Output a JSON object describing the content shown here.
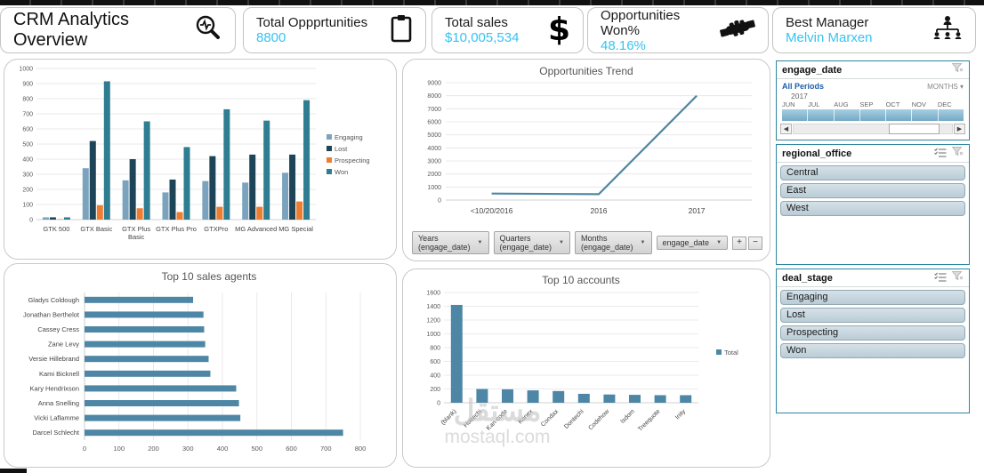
{
  "header": {
    "title": "CRM Analytics Overview",
    "title_icon": "search-analytics-icon",
    "accent_color": "#36c3f1",
    "kpis": [
      {
        "label": "Total Oppprtunities",
        "value": "8800",
        "icon": "clipboard-icon"
      },
      {
        "label": "Total sales",
        "value": "$10,005,534",
        "icon": "dollar-icon"
      },
      {
        "label": "Opportunities Won%",
        "value": "48.16%",
        "icon": "handshake-icon"
      },
      {
        "label": "Best Manager",
        "value": "Melvin Marxen",
        "icon": "org-chart-icon"
      }
    ]
  },
  "chart_data": [
    {
      "type": "bar",
      "name": "opportunities-by-product",
      "title": "",
      "categories": [
        "GTK 500",
        "GTX Basic",
        "GTX Plus Basic",
        "GTX Plus Pro",
        "GTXPro",
        "MG Advanced",
        "MG Special"
      ],
      "series": [
        {
          "name": "Engaging",
          "color": "#7ba3bd",
          "values": [
            15,
            340,
            260,
            180,
            255,
            245,
            310
          ]
        },
        {
          "name": "Lost",
          "color": "#1d4557",
          "values": [
            15,
            520,
            400,
            265,
            420,
            430,
            430
          ]
        },
        {
          "name": "Prospecting",
          "color": "#ed7d31",
          "values": [
            3,
            95,
            75,
            50,
            85,
            85,
            120
          ]
        },
        {
          "name": "Won",
          "color": "#2e7d91",
          "values": [
            15,
            915,
            650,
            480,
            730,
            655,
            790
          ]
        }
      ],
      "ylim": [
        0,
        1000
      ],
      "ytick": 100,
      "grid": true,
      "legend_position": "right"
    },
    {
      "type": "line",
      "name": "opportunities-trend",
      "title": "Opportunities Trend",
      "x": [
        "<10/20/2016",
        "2016",
        "2017"
      ],
      "values": [
        500,
        450,
        8000
      ],
      "color": "#4e87a5",
      "ylim": [
        0,
        9000
      ],
      "ytick": 1000,
      "grid": true
    },
    {
      "type": "bar-horizontal",
      "name": "top-10-sales-agents",
      "title": "Top 10 sales agents",
      "categories": [
        "Gladys Coldough",
        "Jonathan Berthelot",
        "Cassey Cress",
        "Zane Levy",
        "Versie Hillebrand",
        "Kami Bicknell",
        "Kary Hendrixson",
        "Anna Snelling",
        "Vicki Laflamme",
        "Darcel Schlecht"
      ],
      "values": [
        315,
        345,
        347,
        350,
        360,
        365,
        440,
        448,
        452,
        750
      ],
      "color": "#4e87a5",
      "xlim": [
        0,
        800
      ],
      "xtick": 100,
      "grid": true
    },
    {
      "type": "bar",
      "name": "top-10-accounts",
      "title": "Top 10 accounts",
      "categories": [
        "(blank)",
        "Hottechi",
        "Kan-code",
        "Konex",
        "Condax",
        "Dontechi",
        "Codehow",
        "Isdom",
        "Treequote",
        "Inity"
      ],
      "series": [
        {
          "name": "Total",
          "color": "#4e87a5",
          "values": [
            1420,
            200,
            195,
            180,
            170,
            130,
            120,
            115,
            110,
            110
          ]
        }
      ],
      "ylim": [
        0,
        1600
      ],
      "ytick": 200,
      "grid": true,
      "legend_position": "right",
      "x_label_rotation": -45
    }
  ],
  "trend_controls": {
    "buttons": [
      "Years (engage_date)",
      "Quarters (engage_date)",
      "Months (engage_date)",
      "engage_date"
    ],
    "zoom_in": "+",
    "zoom_out": "−"
  },
  "sidebar": {
    "engage_date": {
      "title": "engage_date",
      "range_label": "All Periods",
      "granularity": "MONTHS",
      "year": "2017",
      "months": [
        "JUN",
        "JUL",
        "AUG",
        "SEP",
        "OCT",
        "NOV",
        "DEC"
      ]
    },
    "regional_office": {
      "title": "regional_office",
      "items": [
        "Central",
        "East",
        "West"
      ]
    },
    "deal_stage": {
      "title": "deal_stage",
      "items": [
        "Engaging",
        "Lost",
        "Prospecting",
        "Won"
      ]
    }
  },
  "watermark": {
    "text_arabic": "مستقل",
    "text_latin": "mostaql.com"
  }
}
